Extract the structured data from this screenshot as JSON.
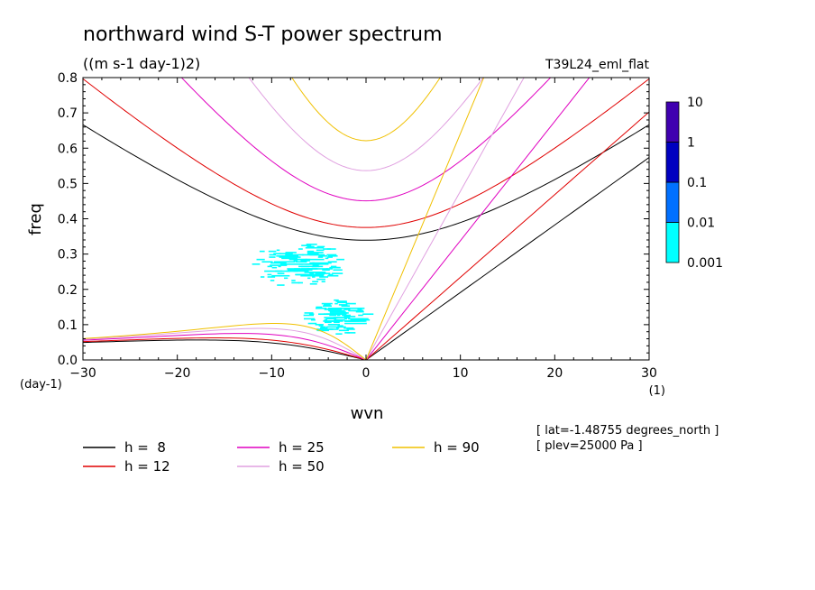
{
  "chart_data": {
    "type": "heatmap",
    "title": "northward wind S-T power spectrum",
    "units": "((m s-1 day-1)2)",
    "experiment": "T39L24_eml_flat",
    "xlabel": "wvn",
    "xunit": "(1)",
    "ylabel": "freq",
    "yunit": "(day-1)",
    "xlim": [
      -30,
      30
    ],
    "ylim": [
      0,
      0.8
    ],
    "xticks": [
      -30,
      -20,
      -10,
      0,
      10,
      20,
      30
    ],
    "xtick_labels": [
      "-30",
      "-20",
      "-10",
      "0",
      "10",
      "20",
      "30"
    ],
    "yticks": [
      0,
      0.1,
      0.2,
      0.3,
      0.4,
      0.5,
      0.6,
      0.7,
      0.8
    ],
    "ytick_labels": [
      "0.0",
      "0.1",
      "0.2",
      "0.3",
      "0.4",
      "0.5",
      "0.6",
      "0.7",
      "0.8"
    ],
    "colorbar": {
      "levels": [
        "0.001",
        "0.01",
        "0.1",
        "1",
        "10"
      ],
      "colors": [
        "#00ffff",
        "#0070ff",
        "#0000c0",
        "#4000b0"
      ]
    },
    "dispersion_curves": [
      {
        "h": 8,
        "label": "h =  8",
        "color": "#000000"
      },
      {
        "h": 12,
        "label": "h = 12",
        "color": "#e00000"
      },
      {
        "h": 25,
        "label": "h = 25",
        "color": "#e000c0"
      },
      {
        "h": 50,
        "label": "h = 50",
        "color": "#e0a0e0"
      },
      {
        "h": 90,
        "label": "h = 90",
        "color": "#f0c000"
      }
    ],
    "power_regions": [
      {
        "level": "0.001-0.01",
        "x_range": [
          -11,
          -4
        ],
        "freq_range": [
          0.22,
          0.32
        ]
      },
      {
        "level": "0.001-0.01",
        "x_range": [
          -6,
          -1
        ],
        "freq_range": [
          0.08,
          0.16
        ]
      }
    ],
    "info_lines": [
      "[ lat=-1.48755 degrees_north ]",
      "[ plev=25000 Pa ]"
    ]
  }
}
